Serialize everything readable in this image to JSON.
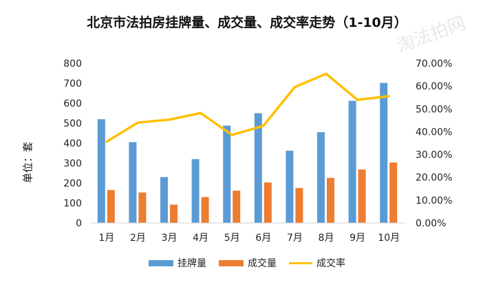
{
  "chart_data": {
    "type": "bar",
    "title": "北京市法拍房挂牌量、成交量、成交率走势（1-10月）",
    "ylabel": "单位：套",
    "categories": [
      "1月",
      "2月",
      "3月",
      "4月",
      "5月",
      "6月",
      "7月",
      "8月",
      "9月",
      "10月"
    ],
    "ylim": [
      0,
      800
    ],
    "yticks": [
      0,
      100,
      200,
      300,
      400,
      500,
      600,
      700,
      800
    ],
    "y2lim": [
      0,
      70
    ],
    "y2ticks": [
      "0.00%",
      "10.00%",
      "20.00%",
      "30.00%",
      "40.00%",
      "50.00%",
      "60.00%",
      "70.00%"
    ],
    "series": [
      {
        "name": "挂牌量",
        "type": "bar",
        "axis": "left",
        "color": "#5b9bd5",
        "values": [
          520,
          405,
          230,
          320,
          488,
          550,
          362,
          455,
          612,
          702
        ]
      },
      {
        "name": "成交量",
        "type": "bar",
        "axis": "left",
        "color": "#ed7d31",
        "values": [
          165,
          153,
          92,
          130,
          162,
          203,
          175,
          226,
          268,
          303
        ]
      },
      {
        "name": "成交率",
        "type": "line",
        "axis": "right",
        "unit": "%",
        "color": "#ffc000",
        "values": [
          35.6,
          44.0,
          45.3,
          48.2,
          38.6,
          42.6,
          59.6,
          65.4,
          54.0,
          55.6
        ]
      }
    ],
    "grid": false,
    "legend": "bottom"
  },
  "watermark": "淘法拍网"
}
